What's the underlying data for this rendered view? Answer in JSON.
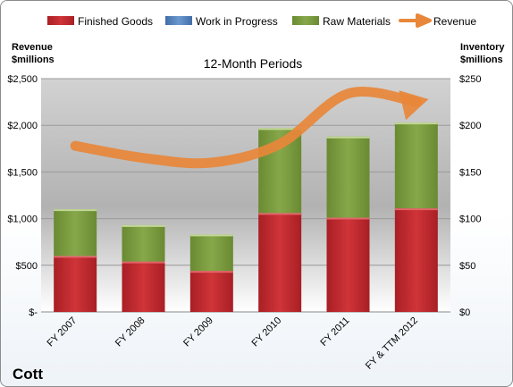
{
  "chart_data": {
    "type": "bar",
    "stacked": true,
    "title": "12-Month Periods",
    "company": "Cott",
    "categories": [
      "FY 2007",
      "FY 2008",
      "FY 2009",
      "FY 2010",
      "FY 2011",
      "FY & TTM 2012"
    ],
    "series": [
      {
        "name": "Finished Goods",
        "axis": "right",
        "color": "#c0272d",
        "values": [
          60,
          54,
          44,
          106,
          101,
          111
        ]
      },
      {
        "name": "Work in Progress",
        "axis": "right",
        "color": "#4f81bd",
        "values": [
          0,
          0,
          0,
          0,
          0,
          0
        ]
      },
      {
        "name": "Raw Materials",
        "axis": "right",
        "color": "#7a9a3c",
        "values": [
          50,
          39,
          39,
          91,
          87,
          92
        ]
      },
      {
        "name": "Revenue",
        "axis": "left",
        "type": "line",
        "color": "#e8873a",
        "values": [
          1780,
          1650,
          1600,
          1800,
          2340,
          2250
        ]
      }
    ],
    "ylabel_left": [
      "Revenue",
      "$millions"
    ],
    "ylabel_right": [
      "Inventory",
      "$millions"
    ],
    "ylim_left": [
      0,
      2500
    ],
    "ylim_right": [
      0,
      250
    ],
    "left_ticks": [
      {
        "value": 0,
        "label": "$-"
      },
      {
        "value": 500,
        "label": "$500"
      },
      {
        "value": 1000,
        "label": "$1,000"
      },
      {
        "value": 1500,
        "label": "$1,500"
      },
      {
        "value": 2000,
        "label": "$2,000"
      },
      {
        "value": 2500,
        "label": "$2,500"
      }
    ],
    "right_ticks": [
      {
        "value": 0,
        "label": "$0"
      },
      {
        "value": 50,
        "label": "$50"
      },
      {
        "value": 100,
        "label": "$100"
      },
      {
        "value": 150,
        "label": "$150"
      },
      {
        "value": 200,
        "label": "$200"
      },
      {
        "value": 250,
        "label": "$250"
      }
    ],
    "grid": true,
    "legend_position": "top"
  }
}
